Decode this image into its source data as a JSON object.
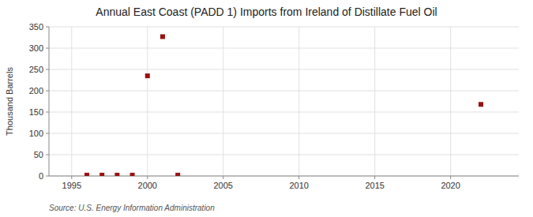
{
  "chart_data": {
    "type": "scatter",
    "title": "Annual East Coast (PADD 1) Imports from Ireland of Distillate Fuel Oil",
    "ylabel": "Thousand Barrels",
    "source": "Source: U.S. Energy Information Administration",
    "x": [
      1996,
      1997,
      1998,
      1999,
      2000,
      2001,
      2002,
      2022
    ],
    "values": [
      2,
      2,
      2,
      2,
      235,
      327,
      2,
      168
    ],
    "color": "#9b1010",
    "marker": "square",
    "xlim": [
      1993.5,
      2024.5
    ],
    "ylim": [
      0,
      350
    ],
    "xticks": [
      1995,
      2000,
      2005,
      2010,
      2015,
      2020
    ],
    "yticks": [
      0,
      50,
      100,
      150,
      200,
      250,
      300,
      350
    ],
    "grid": true
  }
}
